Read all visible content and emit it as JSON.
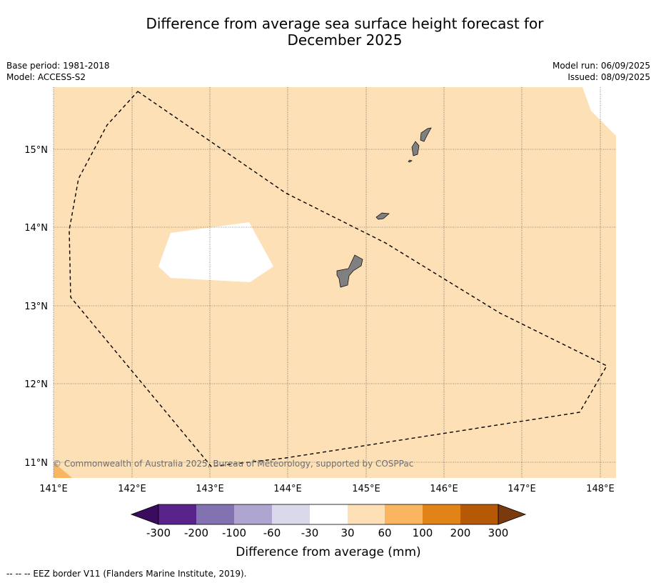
{
  "title_line1": "Difference from average sea surface height forecast for",
  "title_line2": "December 2025",
  "meta": {
    "base_period": "Base period: 1981-2018",
    "model": "Model: ACCESS-S2",
    "model_run": "Model run: 06/09/2025",
    "issued": "Issued: 08/09/2025"
  },
  "map": {
    "lon_labels": [
      "141°E",
      "142°E",
      "143°E",
      "144°E",
      "145°E",
      "146°E",
      "147°E",
      "148°E"
    ],
    "lat_labels": [
      "15°N",
      "14°N",
      "13°N",
      "12°N",
      "11°N"
    ],
    "copyright": "© Commonwealth of Australia 2025, Bureau of Meteorology, supported by COSPPac",
    "fill_colors": {
      "light_orange": "#fde0b6",
      "orange": "#f9b560",
      "land": "#808080"
    }
  },
  "colorbar": {
    "title": "Difference from average (mm)",
    "labels": [
      "-300",
      "-200",
      "-100",
      "-60",
      "-30",
      "30",
      "60",
      "100",
      "200",
      "300"
    ],
    "colors": [
      "#3b0b5d",
      "#59238c",
      "#8372b1",
      "#b0a5d1",
      "#d9d9ec",
      "#ffffff",
      "#fde0b6",
      "#f9b560",
      "#e28318",
      "#b55907",
      "#7b3a0e"
    ]
  },
  "footnote": "--  --  -- EEZ border V11 (Flanders Marine Institute, 2019)."
}
